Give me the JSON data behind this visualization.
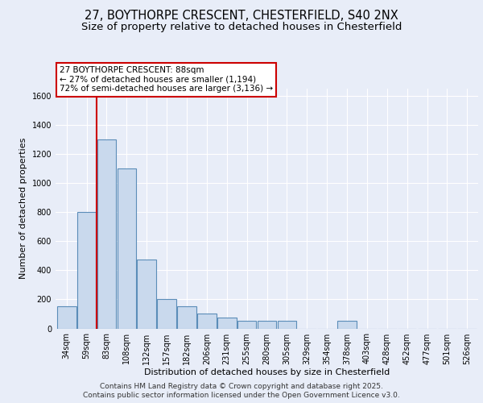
{
  "title_line1": "27, BOYTHORPE CRESCENT, CHESTERFIELD, S40 2NX",
  "title_line2": "Size of property relative to detached houses in Chesterfield",
  "xlabel": "Distribution of detached houses by size in Chesterfield",
  "ylabel": "Number of detached properties",
  "categories": [
    "34sqm",
    "59sqm",
    "83sqm",
    "108sqm",
    "132sqm",
    "157sqm",
    "182sqm",
    "206sqm",
    "231sqm",
    "255sqm",
    "280sqm",
    "305sqm",
    "329sqm",
    "354sqm",
    "378sqm",
    "403sqm",
    "428sqm",
    "452sqm",
    "477sqm",
    "501sqm",
    "526sqm"
  ],
  "values": [
    150,
    800,
    1300,
    1100,
    475,
    200,
    150,
    100,
    75,
    50,
    50,
    50,
    0,
    0,
    50,
    0,
    0,
    0,
    0,
    0,
    0
  ],
  "bar_color": "#c9d9ed",
  "bar_edge_color": "#5b8db8",
  "vline_x": 1.5,
  "vline_color": "#cc0000",
  "annotation_text": "27 BOYTHORPE CRESCENT: 88sqm\n← 27% of detached houses are smaller (1,194)\n72% of semi-detached houses are larger (3,136) →",
  "annotation_box_edgecolor": "#cc0000",
  "annotation_bg": "#ffffff",
  "ylim": [
    0,
    1650
  ],
  "yticks": [
    0,
    200,
    400,
    600,
    800,
    1000,
    1200,
    1400,
    1600
  ],
  "footer_line1": "Contains HM Land Registry data © Crown copyright and database right 2025.",
  "footer_line2": "Contains public sector information licensed under the Open Government Licence v3.0.",
  "bg_color": "#e8edf8",
  "grid_color": "#ffffff",
  "title_fontsize": 10.5,
  "subtitle_fontsize": 9.5,
  "axis_label_fontsize": 8,
  "tick_fontsize": 7,
  "footer_fontsize": 6.5,
  "annotation_fontsize": 7.5
}
